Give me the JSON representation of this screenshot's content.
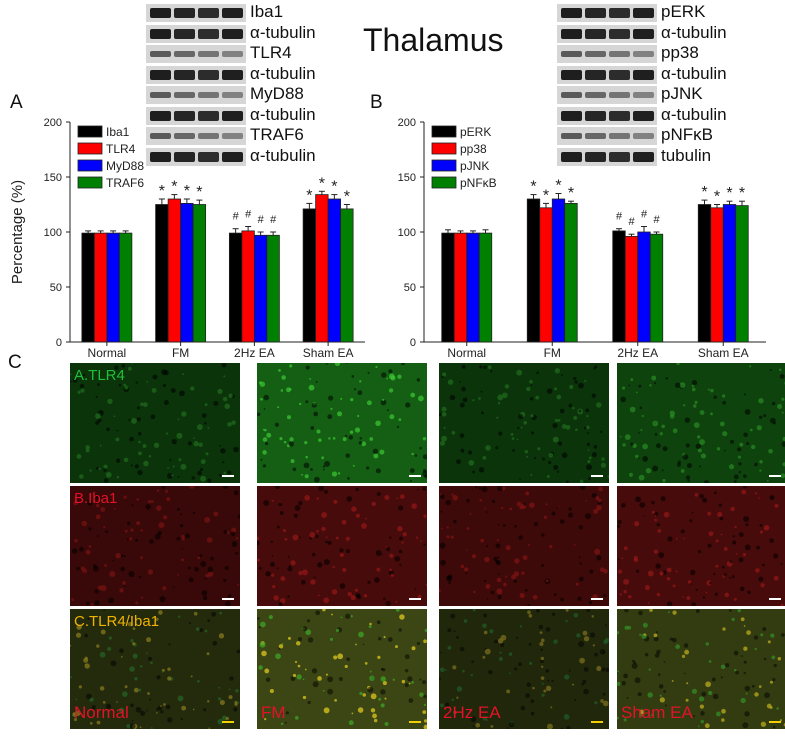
{
  "figure": {
    "title": "Thalamus",
    "panel_labels": {
      "a": "A",
      "b": "B",
      "c": "C"
    }
  },
  "blots_left": [
    "Iba1",
    "α-tubulin",
    "TLR4",
    "α-tubulin",
    "MyD88",
    "α-tubulin",
    "TRAF6",
    "α-tubulin"
  ],
  "blots_right": [
    "pERK",
    "α-tubulin",
    "pp38",
    "α-tubulin",
    "pJNK",
    "α-tubulin",
    "pNFκB",
    "tubulin"
  ],
  "chart_data": [
    {
      "type": "bar",
      "ylabel": "Percentage (%)",
      "ylim": [
        0,
        200
      ],
      "yticks": [
        0,
        50,
        100,
        150,
        200
      ],
      "categories": [
        "Normal",
        "FM",
        "2Hz EA",
        "Sham EA"
      ],
      "legend_position": "top-left",
      "series": [
        {
          "name": "Iba1",
          "color": "#000000",
          "values": [
            99,
            125,
            99,
            121
          ],
          "errors": [
            2,
            5,
            4,
            5
          ]
        },
        {
          "name": "TLR4",
          "color": "#ff0000",
          "values": [
            99,
            130,
            101,
            134
          ],
          "errors": [
            2,
            4,
            4,
            3
          ]
        },
        {
          "name": "MyD88",
          "color": "#0000ff",
          "values": [
            99,
            126,
            97,
            130
          ],
          "errors": [
            2,
            4,
            3,
            4
          ]
        },
        {
          "name": "TRAF6",
          "color": "#008000",
          "values": [
            99,
            125,
            97,
            121
          ],
          "errors": [
            2,
            4,
            3,
            4
          ]
        }
      ],
      "annotations": [
        [
          "",
          "*",
          "#",
          "*"
        ],
        [
          "",
          "*",
          "#",
          "*"
        ],
        [
          "",
          "*",
          "#",
          "*"
        ],
        [
          "",
          "*",
          "#",
          "*"
        ]
      ]
    },
    {
      "type": "bar",
      "ylabel": "",
      "ylim": [
        0,
        200
      ],
      "yticks": [
        0,
        50,
        100,
        150,
        200
      ],
      "categories": [
        "Normal",
        "FM",
        "2Hz EA",
        "Sham EA"
      ],
      "legend_position": "top-left",
      "series": [
        {
          "name": "pERK",
          "color": "#000000",
          "values": [
            99,
            130,
            101,
            125
          ],
          "errors": [
            3,
            4,
            2,
            4
          ]
        },
        {
          "name": "pp38",
          "color": "#ff0000",
          "values": [
            99,
            122,
            96,
            122
          ],
          "errors": [
            2,
            4,
            2,
            3
          ]
        },
        {
          "name": "pJNK",
          "color": "#0000ff",
          "values": [
            99,
            130,
            100,
            125
          ],
          "errors": [
            2,
            5,
            5,
            3
          ]
        },
        {
          "name": "pNFκB",
          "color": "#008000",
          "values": [
            99,
            126,
            98,
            124
          ],
          "errors": [
            3,
            2,
            2,
            4
          ]
        }
      ],
      "annotations": [
        [
          "",
          "*",
          "#",
          "*"
        ],
        [
          "",
          "*",
          "#",
          "*"
        ],
        [
          "",
          "*",
          "#",
          "*"
        ],
        [
          "",
          "*",
          "#",
          "*"
        ]
      ]
    }
  ],
  "micrographs": {
    "rows": [
      {
        "label": "A.TLR4",
        "label_color": "#1fbf3a",
        "type": "green"
      },
      {
        "label": "B.Iba1",
        "label_color": "#e3122a",
        "type": "red"
      },
      {
        "label": "C.TLR4/Iba1",
        "label_color": "#f0b400",
        "type": "merge"
      }
    ],
    "groups": [
      "Normal",
      "FM",
      "2Hz EA",
      "Sham EA"
    ],
    "intensity": {
      "green": [
        0.55,
        1.0,
        0.55,
        0.7
      ],
      "red": [
        0.6,
        0.75,
        0.65,
        0.75
      ],
      "merge": [
        0.6,
        1.0,
        0.55,
        0.85
      ]
    }
  }
}
